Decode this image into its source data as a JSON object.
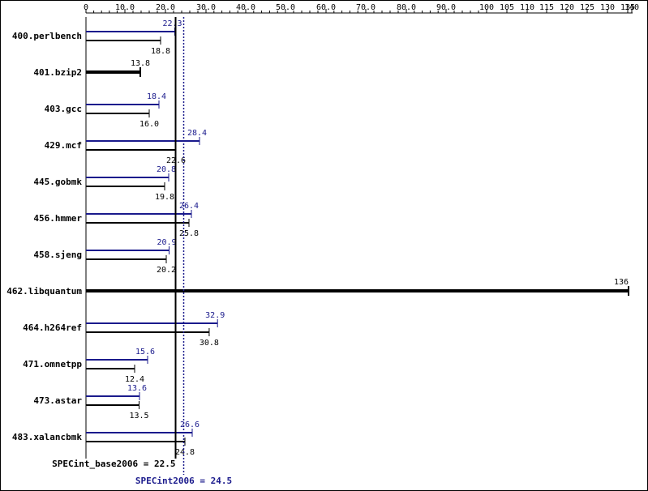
{
  "chart_data": {
    "type": "bar",
    "orientation": "horizontal",
    "title": "",
    "xlabel": "",
    "ylabel": "",
    "x_ticks": [
      "0",
      "10.0",
      "20.0",
      "30.0",
      "40.0",
      "50.0",
      "60.0",
      "70.0",
      "80.0",
      "90.0",
      "100",
      "105",
      "110",
      "115",
      "120",
      "125",
      "130",
      "135",
      "140"
    ],
    "categories": [
      "400.perlbench",
      "401.bzip2",
      "403.gcc",
      "429.mcf",
      "445.gobmk",
      "456.hmmer",
      "458.sjeng",
      "462.libquantum",
      "464.h264ref",
      "471.omnetpp",
      "473.astar",
      "483.xalancbmk"
    ],
    "series": [
      {
        "name": "SPECint2006",
        "color": "#1a1a8c",
        "values": [
          22.3,
          null,
          18.4,
          28.4,
          20.8,
          26.4,
          20.9,
          null,
          32.9,
          15.6,
          13.6,
          26.6
        ]
      },
      {
        "name": "SPECint_base2006",
        "color": "#000000",
        "values": [
          18.8,
          13.8,
          16.0,
          22.6,
          19.8,
          25.8,
          20.2,
          136,
          30.8,
          12.4,
          13.5,
          24.8
        ]
      }
    ],
    "summary": {
      "base": {
        "label": "SPECint_base2006 = 22.5",
        "value": 22.5,
        "color": "#000000"
      },
      "peak": {
        "label": "SPECint2006 = 24.5",
        "value": 24.5,
        "color": "#1a1a8c"
      }
    },
    "grid": false,
    "legend": "none"
  }
}
